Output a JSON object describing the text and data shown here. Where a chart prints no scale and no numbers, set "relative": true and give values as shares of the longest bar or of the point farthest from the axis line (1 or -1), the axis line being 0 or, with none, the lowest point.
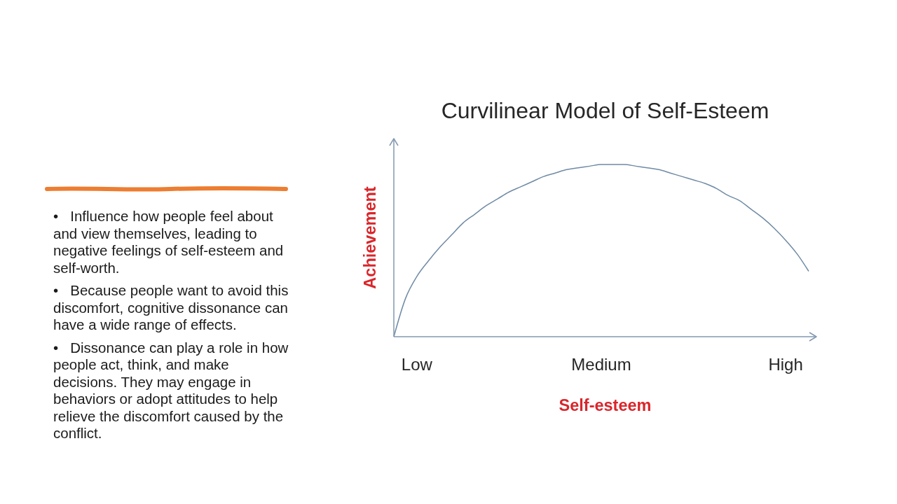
{
  "chart_data": {
    "type": "line",
    "title": "Curvilinear Model of Self-Esteem",
    "xlabel": "Self-esteem",
    "ylabel": "Achievement",
    "annotations": [
      "•   Influence how people feel about and view themselves, leading to negative feelings of self-esteem and self-worth.",
      "•   Because people want to avoid this discomfort, cognitive dissonance can have a wide range of effects.",
      "•   Dissonance can play a role in how people act, think, and make decisions. They may engage in behaviors or adopt attitudes to help relieve the discomfort caused by the conflict."
    ],
    "categories": [
      null,
      null,
      "Low",
      null,
      null,
      null,
      null,
      null,
      null,
      null,
      null,
      null,
      null,
      null,
      null,
      null,
      null,
      null,
      "Medium",
      null,
      null,
      null,
      null,
      null,
      null,
      null,
      null,
      null,
      null,
      null,
      null,
      null,
      null,
      null,
      "High",
      null,
      null
    ],
    "relative": true,
    "series": [
      {
        "color": "#6f8aa5",
        "values": [
          0,
          0.22,
          0.35,
          0.44,
          0.52,
          0.59,
          0.66,
          0.71,
          0.76,
          0.8,
          0.84,
          0.87,
          0.9,
          0.93,
          0.95,
          0.97,
          0.98,
          0.99,
          1,
          1,
          1,
          0.99,
          0.98,
          0.97,
          0.95,
          0.93,
          0.91,
          0.89,
          0.86,
          0.82,
          0.79,
          0.74,
          0.69,
          0.63,
          0.56,
          0.48,
          0.38
        ]
      }
    ],
    "marker": "none",
    "line_style": "solid"
  }
}
